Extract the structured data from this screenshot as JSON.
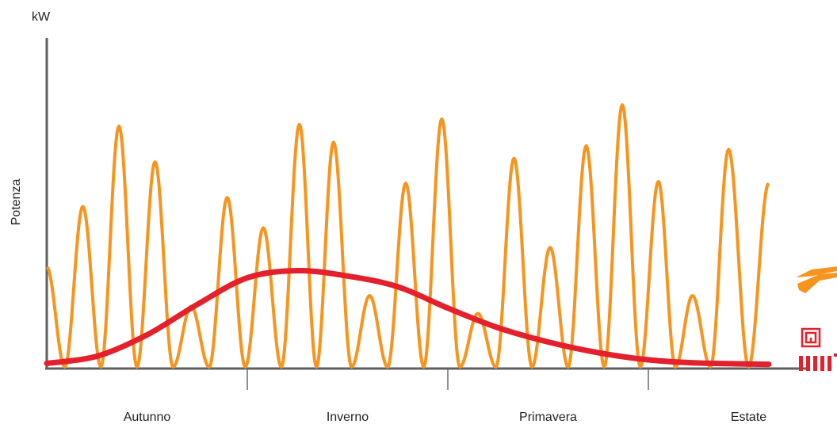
{
  "chart_data": {
    "type": "line",
    "title": "",
    "xlabel": "",
    "ylabel": "Potenza",
    "yunit": "kW",
    "categories": [
      "Autunno",
      "Inverno",
      "Primavera",
      "Estate"
    ],
    "xlim": [
      0,
      4
    ],
    "ylim": [
      0,
      100
    ],
    "grid": false,
    "legend": "none",
    "series": [
      {
        "color": "#f7941d",
        "style": "oscillating",
        "peaks": [
          {
            "x": 0.0,
            "y": 56
          },
          {
            "x": 0.18,
            "y": 90
          },
          {
            "x": 0.36,
            "y": 135
          },
          {
            "x": 0.54,
            "y": 115
          },
          {
            "x": 0.72,
            "y": 34
          },
          {
            "x": 0.9,
            "y": 95
          },
          {
            "x": 1.08,
            "y": 78
          },
          {
            "x": 1.26,
            "y": 136
          },
          {
            "x": 1.43,
            "y": 126
          },
          {
            "x": 1.61,
            "y": 40
          },
          {
            "x": 1.79,
            "y": 103
          },
          {
            "x": 1.97,
            "y": 139
          },
          {
            "x": 2.15,
            "y": 30
          },
          {
            "x": 2.33,
            "y": 117
          },
          {
            "x": 2.51,
            "y": 67
          },
          {
            "x": 2.69,
            "y": 124
          },
          {
            "x": 2.87,
            "y": 147
          },
          {
            "x": 3.05,
            "y": 104
          },
          {
            "x": 3.22,
            "y": 40
          },
          {
            "x": 3.4,
            "y": 122
          },
          {
            "x": 3.6,
            "y": 103
          }
        ]
      },
      {
        "color": "#e3202b",
        "style": "smooth",
        "points": [
          {
            "x": 0.0,
            "y": 2
          },
          {
            "x": 0.25,
            "y": 6
          },
          {
            "x": 0.5,
            "y": 18
          },
          {
            "x": 0.75,
            "y": 35
          },
          {
            "x": 1.0,
            "y": 50
          },
          {
            "x": 1.25,
            "y": 54
          },
          {
            "x": 1.5,
            "y": 51
          },
          {
            "x": 1.75,
            "y": 45
          },
          {
            "x": 2.0,
            "y": 33
          },
          {
            "x": 2.25,
            "y": 22
          },
          {
            "x": 2.5,
            "y": 14
          },
          {
            "x": 2.75,
            "y": 8
          },
          {
            "x": 3.0,
            "y": 4
          },
          {
            "x": 3.25,
            "y": 2.2
          },
          {
            "x": 3.6,
            "y": 1.5
          }
        ]
      }
    ],
    "legend_icons": [
      {
        "name": "solar-collector-icon",
        "color": "#f7941d"
      },
      {
        "name": "underfloor-heating-icon",
        "color": "#e3202b"
      },
      {
        "name": "radiator-icon",
        "color": "#e3202b"
      }
    ]
  }
}
